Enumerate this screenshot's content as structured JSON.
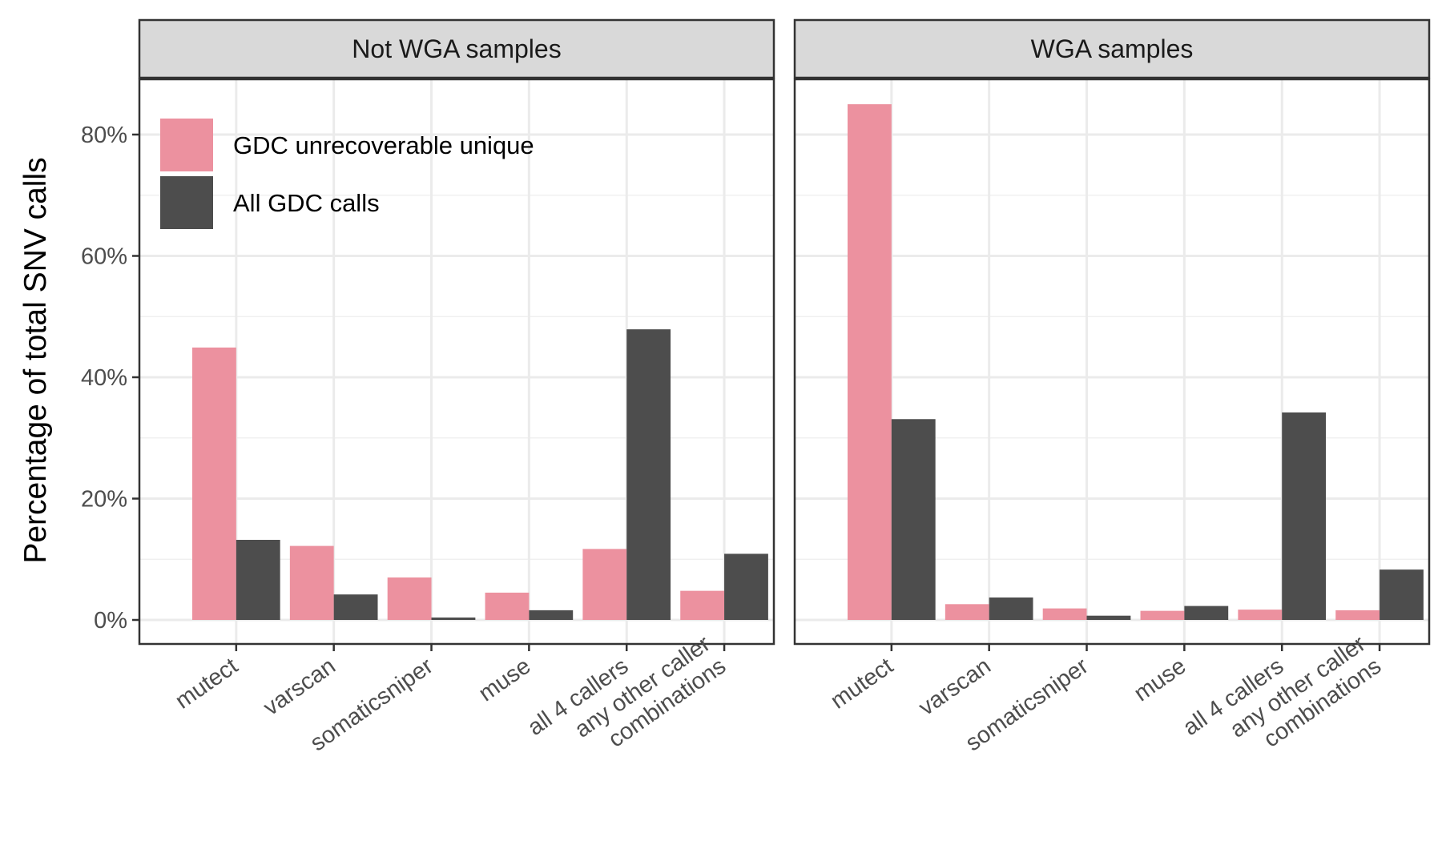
{
  "chart_data": {
    "type": "bar",
    "ylabel": "Percentage of total SNV calls",
    "ylim": [
      0,
      88
    ],
    "yticks": [
      {
        "value": 0,
        "label": "0%"
      },
      {
        "value": 20,
        "label": "20%"
      },
      {
        "value": 40,
        "label": "40%"
      },
      {
        "value": 60,
        "label": "60%"
      },
      {
        "value": 80,
        "label": "80%"
      }
    ],
    "grid": true,
    "legend_position": "top-left inside first panel",
    "categories": [
      "mutect",
      "varscan",
      "somaticsniper",
      "muse",
      "all 4 callers",
      "any other caller combinations"
    ],
    "category_label_lines": [
      [
        "mutect"
      ],
      [
        "varscan"
      ],
      [
        "somaticsniper"
      ],
      [
        "muse"
      ],
      [
        "all 4 callers"
      ],
      [
        "any other caller",
        "combinations"
      ]
    ],
    "series_meta": [
      {
        "name": "GDC unrecoverable unique",
        "color": "#ec919f"
      },
      {
        "name": "All GDC calls",
        "color": "#4d4d4d"
      }
    ],
    "panels": [
      {
        "title": "Not WGA samples",
        "series": [
          {
            "name": "GDC unrecoverable unique",
            "values": [
              44.9,
              12.2,
              7.0,
              4.5,
              11.7,
              4.8
            ]
          },
          {
            "name": "All GDC calls",
            "values": [
              13.2,
              4.2,
              0.4,
              1.6,
              47.9,
              10.9
            ]
          }
        ]
      },
      {
        "title": "WGA samples",
        "series": [
          {
            "name": "GDC unrecoverable unique",
            "values": [
              85.0,
              2.6,
              1.9,
              1.5,
              1.7,
              1.6
            ]
          },
          {
            "name": "All GDC calls",
            "values": [
              33.1,
              3.7,
              0.7,
              2.3,
              34.2,
              8.3
            ]
          }
        ]
      }
    ]
  }
}
